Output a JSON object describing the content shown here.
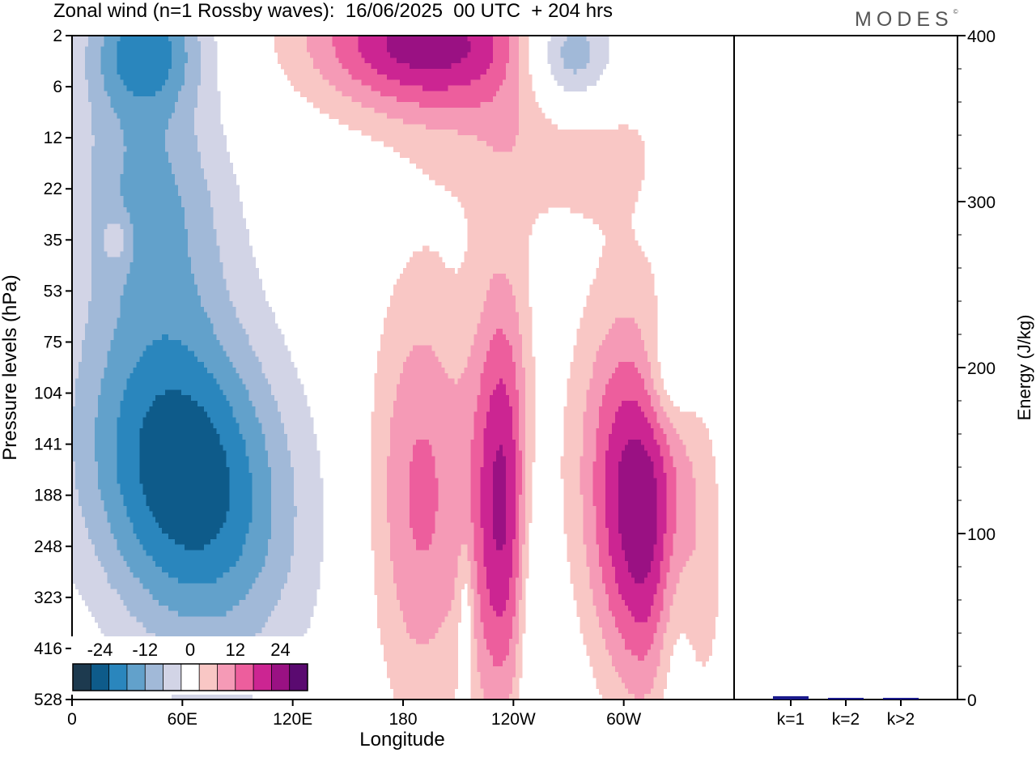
{
  "title": "Zonal wind (n=1 Rossby waves):  16/06/2025  00 UTC  + 204 hrs",
  "brand": "MODES",
  "chart_data": [
    {
      "type": "heatmap",
      "title": "Zonal wind (n=1 Rossby waves):  16/06/2025  00 UTC  + 204 hrs",
      "xlabel": "Longitude",
      "ylabel": "Pressure levels (hPa)",
      "x_ticks": [
        "0",
        "60E",
        "120E",
        "180",
        "120W",
        "60W"
      ],
      "y_ticks": [
        "2",
        "6",
        "12",
        "22",
        "35",
        "53",
        "75",
        "104",
        "141",
        "188",
        "248",
        "323",
        "416",
        "528"
      ],
      "colorbar": {
        "tick_labels": [
          "-24",
          "-12",
          "0",
          "12",
          "24"
        ],
        "colors": [
          "#1d3a4f",
          "#0e5b8a",
          "#2a86bd",
          "#62a1cb",
          "#a1b9d8",
          "#d2d4e6",
          "#ffffff",
          "#f9c7c5",
          "#f59ab6",
          "#ed5e9d",
          "#cc2592",
          "#9a1183",
          "#5a0a70"
        ]
      },
      "blobs": [
        {
          "sign": "neg",
          "lon": 61,
          "lev": 8.6,
          "dlon": 40,
          "dlev": 2.4,
          "amp": 24,
          "skew": 0.35
        },
        {
          "sign": "neg",
          "lon": 42,
          "lev": 3.0,
          "dlon": 30,
          "dlev": 1.8,
          "amp": 12,
          "skew": 0.25
        },
        {
          "sign": "neg",
          "lon": 40,
          "lev": 0.2,
          "dlon": 22,
          "dlev": 0.9,
          "amp": 16,
          "skew": 0
        },
        {
          "sign": "neg",
          "lon": 270,
          "lev": 0.4,
          "dlon": 18,
          "dlev": 0.8,
          "amp": 16,
          "skew": 0
        },
        {
          "sign": "neg",
          "lon": 325,
          "lev": 6.6,
          "dlon": 10,
          "dlev": 0.9,
          "amp": 8,
          "skew": 0
        },
        {
          "sign": "neg",
          "lon": 328,
          "lev": 11.6,
          "dlon": 8,
          "dlev": 2.2,
          "amp": 8,
          "skew": 0
        },
        {
          "sign": "neg",
          "lon": 250,
          "lev": 11.4,
          "dlon": 6,
          "dlev": 3.0,
          "amp": 7,
          "skew": 0
        },
        {
          "sign": "neg",
          "lon": 214,
          "lev": 11.5,
          "dlon": 3,
          "dlev": 1.1,
          "amp": 7,
          "skew": 0
        },
        {
          "sign": "pos",
          "lon": 192,
          "lev": 0.1,
          "dlon": 45,
          "dlev": 1.0,
          "amp": 22,
          "skew": 0
        },
        {
          "sign": "pos",
          "lon": 262,
          "lev": 2.1,
          "dlon": 48,
          "dlev": 1.2,
          "amp": 6,
          "skew": 0
        },
        {
          "sign": "pos",
          "lon": 190,
          "lev": 9.0,
          "dlon": 20,
          "dlev": 3.0,
          "amp": 13,
          "skew": 0
        },
        {
          "sign": "pos",
          "lon": 234,
          "lev": 9.1,
          "dlon": 12,
          "dlev": 3.1,
          "amp": 20,
          "skew": 0
        },
        {
          "sign": "pos",
          "lon": 310,
          "lev": 9.3,
          "dlon": 22,
          "dlev": 2.6,
          "amp": 24,
          "skew": 0.15
        },
        {
          "sign": "pos",
          "lon": 25,
          "lev": 4.0,
          "dlon": 5,
          "dlev": 0.35,
          "amp": 6,
          "skew": 0
        }
      ]
    },
    {
      "type": "bar",
      "ylabel": "Energy (J/kg)",
      "ylim": [
        0,
        400
      ],
      "y_ticks": [
        "0",
        "100",
        "200",
        "300",
        "400"
      ],
      "categories": [
        "k=1",
        "k=2",
        "k>2"
      ],
      "values": [
        2,
        1,
        1
      ],
      "bar_color": "#1a1a8c"
    }
  ]
}
